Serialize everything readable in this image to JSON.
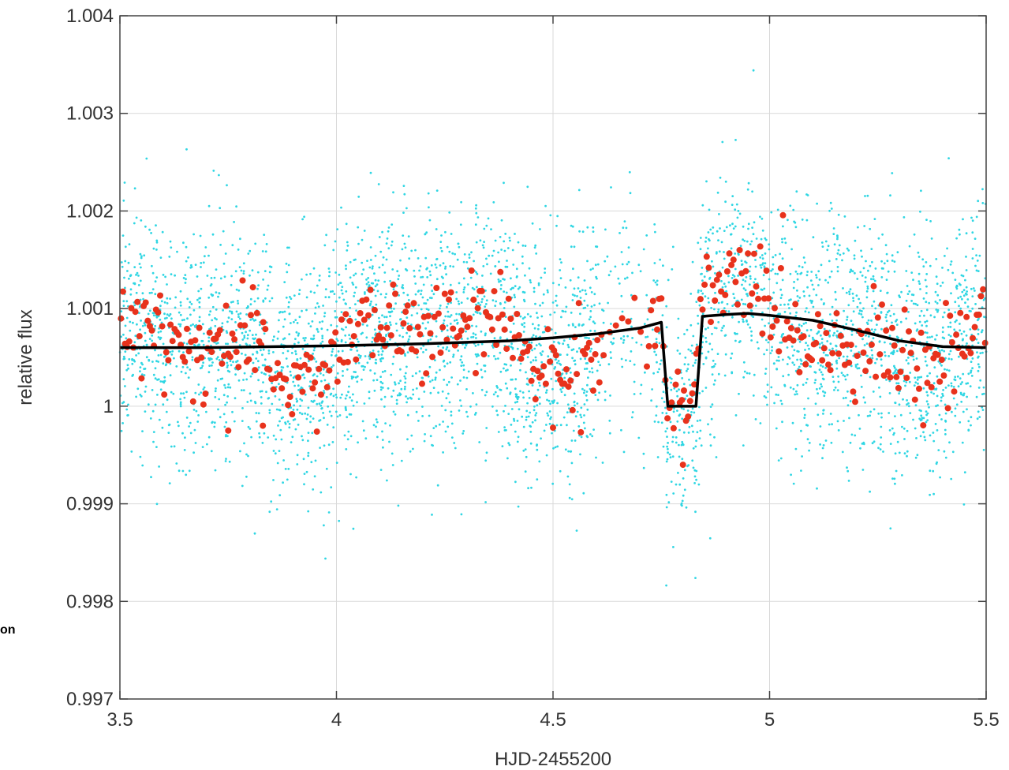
{
  "chart_data": {
    "type": "scatter",
    "xlabel": "HJD-2455200",
    "ylabel": "relative flux",
    "xlim": [
      3.5,
      5.5
    ],
    "ylim": [
      0.997,
      1.004
    ],
    "x_ticks": [
      "3.5",
      "4",
      "4.5",
      "5",
      "5.5"
    ],
    "y_ticks": [
      "0.997",
      "0.998",
      "0.999",
      "1",
      "1.001",
      "1.002",
      "1.003",
      "1.004"
    ],
    "grid": true,
    "colors": {
      "raw": "#2fd6e3",
      "binned": "#e8321c",
      "model": "#000000"
    },
    "raw_points": {
      "count": 4200,
      "mean": 1.0006,
      "std": 0.0006
    },
    "binned_points": {
      "count": 420,
      "mean": 1.0006,
      "std": 0.00024
    },
    "model_curve": {
      "x": [
        3.5,
        3.7,
        4.0,
        4.2,
        4.4,
        4.5,
        4.6,
        4.7,
        4.75,
        4.765,
        4.83,
        4.845,
        4.9,
        4.95,
        5.0,
        5.1,
        5.2,
        5.3,
        5.4,
        5.5
      ],
      "y": [
        1.0006,
        1.0006,
        1.00062,
        1.00064,
        1.00067,
        1.0007,
        1.00074,
        1.0008,
        1.00086,
        1.0,
        1.0,
        1.00092,
        1.00094,
        1.00095,
        1.00093,
        1.00088,
        1.00078,
        1.00067,
        1.00061,
        1.0006
      ]
    },
    "outliers": [
      {
        "x": 4.8,
        "y": 0.9994
      },
      {
        "x": 3.75,
        "y": 0.99975
      },
      {
        "x": 3.83,
        "y": 0.9998
      },
      {
        "x": 4.5,
        "y": 0.99978
      }
    ]
  },
  "side_label": "on"
}
